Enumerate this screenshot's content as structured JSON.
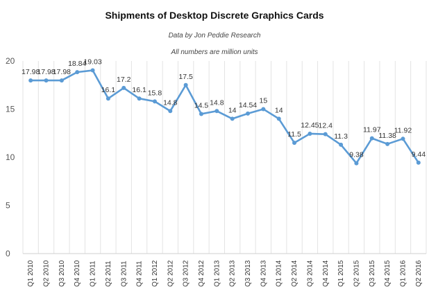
{
  "chart_data": {
    "type": "line",
    "title": "Shipments of Desktop Discrete Graphics Cards",
    "subtitles": [
      "Data by Jon Peddie Research",
      "All numbers are million units"
    ],
    "xlabel": "",
    "ylabel": "",
    "ylim": [
      0,
      20
    ],
    "yticks": [
      0,
      5,
      10,
      15,
      20
    ],
    "grid": "vertical",
    "legend": "none",
    "line_color": "#5b9bd5",
    "categories": [
      "Q1 2010",
      "Q2 2010",
      "Q3 2010",
      "Q4 2010",
      "Q1 2011",
      "Q2 2011",
      "Q3 2011",
      "Q4 2011",
      "Q1 2012",
      "Q2 2012",
      "Q3 2012",
      "Q4 2012",
      "Q1 2013",
      "Q2 2013",
      "Q3 2013",
      "Q4 2013",
      "Q1 2014",
      "Q2 2014",
      "Q3 2014",
      "Q4 2014",
      "Q1 2015",
      "Q2 2015",
      "Q3 2015",
      "Q4 2015",
      "Q1 2016",
      "Q2 2016"
    ],
    "values": [
      17.98,
      17.98,
      17.98,
      18.84,
      19.03,
      16.1,
      17.2,
      16.1,
      15.8,
      14.8,
      17.5,
      14.5,
      14.8,
      14,
      14.54,
      15,
      14,
      11.5,
      12.45,
      12.4,
      11.3,
      9.38,
      11.97,
      11.38,
      11.92,
      9.44
    ],
    "data_labels": [
      "17.98",
      "17.98",
      "17.98",
      "18.84",
      "19.03",
      "16.1",
      "17.2",
      "16.1",
      "15.8",
      "14.8",
      "17.5",
      "14.5",
      "14.8",
      "14",
      "14.54",
      "15",
      "14",
      "11.5",
      "12.45",
      "12.4",
      "11.3",
      "9.38",
      "11.97",
      "11.38",
      "11.92",
      "9.44"
    ]
  }
}
